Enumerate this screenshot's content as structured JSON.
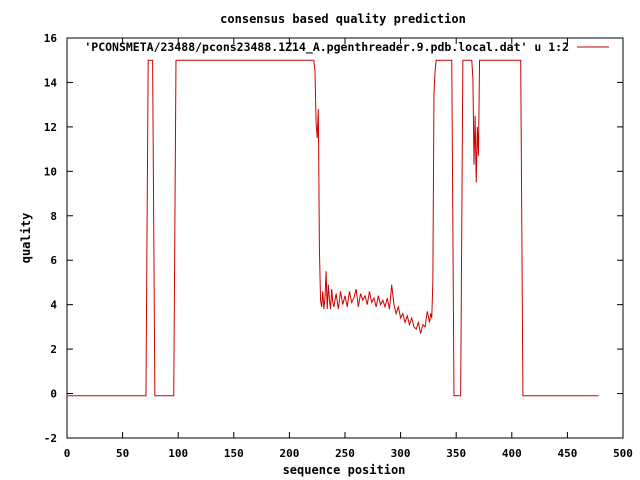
{
  "chart_data": {
    "type": "line",
    "title": "consensus based quality prediction",
    "xlabel": "sequence position",
    "ylabel": "quality",
    "xlim": [
      0,
      500
    ],
    "ylim": [
      -2,
      16
    ],
    "xticks": [
      "0",
      "50",
      "100",
      "150",
      "200",
      "250",
      "300",
      "350",
      "400",
      "450",
      "500"
    ],
    "yticks": [
      "-2",
      "0",
      "2",
      "4",
      "6",
      "8",
      "10",
      "12",
      "14",
      "16"
    ],
    "grid": false,
    "legend_position": "top-right",
    "line_color": "#cc0000",
    "series": [
      {
        "name": "'PCONSMETA/23488/pcons23488.1Z14_A.pgenthreader.9.pdb.local.dat' u 1:2",
        "x": [
          1,
          71,
          72,
          73,
          74,
          77,
          78,
          79,
          96,
          97,
          98,
          222,
          223,
          224,
          225,
          226,
          227,
          228,
          229,
          230,
          231,
          232,
          233,
          234,
          235,
          236,
          237,
          238,
          239,
          240,
          242,
          244,
          246,
          248,
          250,
          252,
          254,
          256,
          258,
          260,
          262,
          264,
          266,
          268,
          270,
          272,
          274,
          276,
          278,
          280,
          282,
          284,
          286,
          288,
          290,
          292,
          294,
          296,
          298,
          300,
          302,
          304,
          306,
          308,
          310,
          312,
          314,
          316,
          318,
          320,
          322,
          324,
          326,
          327,
          328,
          329,
          330,
          331,
          332,
          333,
          346,
          347,
          348,
          349,
          350,
          351,
          354,
          355,
          356,
          357,
          358,
          364,
          365,
          366,
          367,
          368,
          369,
          370,
          371,
          408,
          409,
          410,
          411,
          478
        ],
        "y": [
          -0.1,
          -0.1,
          7.5,
          15,
          15,
          15,
          7.5,
          -0.1,
          -0.1,
          7.5,
          15,
          15,
          14.5,
          12.2,
          11.5,
          12.8,
          6.5,
          4.2,
          3.9,
          4.6,
          3.8,
          4.3,
          5.5,
          3.8,
          4.9,
          4.2,
          3.8,
          4.7,
          4.1,
          3.9,
          4.5,
          3.8,
          4.6,
          4.0,
          4.4,
          3.9,
          4.6,
          4.1,
          4.3,
          4.7,
          3.9,
          4.5,
          4.2,
          4.4,
          4.0,
          4.6,
          4.1,
          4.3,
          3.9,
          4.4,
          4.0,
          4.2,
          3.9,
          4.3,
          3.8,
          4.9,
          4.0,
          3.6,
          3.9,
          3.4,
          3.6,
          3.2,
          3.5,
          3.1,
          3.4,
          3.0,
          2.9,
          3.2,
          2.7,
          3.1,
          3.0,
          3.7,
          3.2,
          3.6,
          3.4,
          5.0,
          13.5,
          14.5,
          15,
          15,
          15,
          7.5,
          -0.1,
          -0.1,
          -0.1,
          -0.1,
          -0.1,
          7.5,
          15,
          15,
          15,
          15,
          14.2,
          10.3,
          12.5,
          9.5,
          12.0,
          10.7,
          15,
          15,
          7.5,
          -0.1,
          -0.1,
          -0.1
        ]
      }
    ]
  }
}
